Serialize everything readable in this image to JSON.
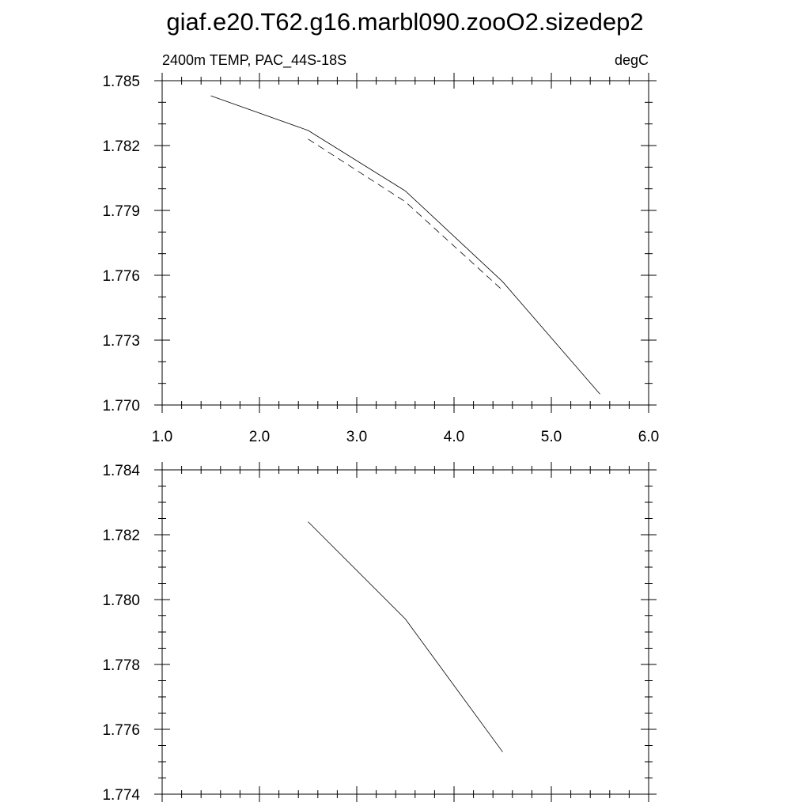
{
  "title": "giaf.e20.T62.g16.marbl090.zooO2.sizedep2",
  "colors": {
    "background": "#ffffff",
    "axis": "#000000",
    "line": "#000000"
  },
  "chart_data": [
    {
      "type": "line",
      "left_label": "2400m TEMP, PAC_44S-18S",
      "right_label": "degC",
      "xlim": [
        1.0,
        6.0
      ],
      "ylim": [
        1.77,
        1.785
      ],
      "x_ticks": [
        "1.0",
        "2.0",
        "3.0",
        "4.0",
        "5.0",
        "6.0"
      ],
      "x_tick_values": [
        1.0,
        2.0,
        3.0,
        4.0,
        5.0,
        6.0
      ],
      "y_ticks": [
        "1.770",
        "1.773",
        "1.776",
        "1.779",
        "1.782",
        "1.785"
      ],
      "y_tick_values": [
        1.77,
        1.773,
        1.776,
        1.779,
        1.782,
        1.785
      ],
      "x_minor_step": 0.2,
      "y_minor_step": 0.001,
      "show_x_tick_labels": true,
      "grid": false,
      "series": [
        {
          "style": "solid",
          "x": [
            1.5,
            2.5,
            3.5,
            4.5,
            5.5
          ],
          "y": [
            1.7843,
            1.7827,
            1.7799,
            1.7757,
            1.7705
          ]
        },
        {
          "style": "dashed",
          "x": [
            2.5,
            3.5,
            4.5
          ],
          "y": [
            1.7823,
            1.7794,
            1.7753
          ]
        }
      ]
    },
    {
      "type": "line",
      "left_label": "",
      "right_label": "",
      "xlim": [
        1.0,
        6.0
      ],
      "ylim": [
        1.774,
        1.784
      ],
      "x_ticks": [
        "1.0",
        "2.0",
        "3.0",
        "4.0",
        "5.0",
        "6.0"
      ],
      "x_tick_values": [
        1.0,
        2.0,
        3.0,
        4.0,
        5.0,
        6.0
      ],
      "y_ticks": [
        "1.774",
        "1.776",
        "1.778",
        "1.780",
        "1.782",
        "1.784"
      ],
      "y_tick_values": [
        1.774,
        1.776,
        1.778,
        1.78,
        1.782,
        1.784
      ],
      "x_minor_step": 0.2,
      "y_minor_step": 0.0005,
      "show_x_tick_labels": false,
      "grid": false,
      "series": [
        {
          "style": "solid",
          "x": [
            2.5,
            3.5,
            4.5
          ],
          "y": [
            1.7824,
            1.7794,
            1.7753
          ]
        }
      ]
    }
  ]
}
